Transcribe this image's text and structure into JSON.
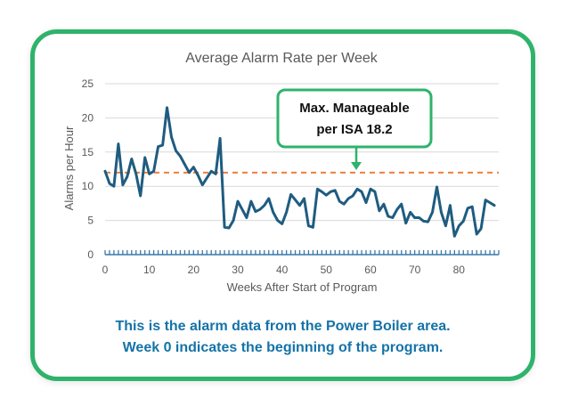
{
  "chart_data": {
    "type": "line",
    "title": "Average Alarm Rate per Week",
    "xlabel": "Weeks After Start of Program",
    "ylabel": "Alarms per Hour",
    "xlim": [
      0,
      89
    ],
    "ylim": [
      0,
      25
    ],
    "xticks": [
      0,
      10,
      20,
      30,
      40,
      50,
      60,
      70,
      80
    ],
    "yticks": [
      0,
      5,
      10,
      15,
      20,
      25
    ],
    "grid": "horizontal",
    "threshold": {
      "value": 12,
      "color": "#f07f3c",
      "style": "dashed"
    },
    "series": [
      {
        "color": "#1f5c80",
        "x": [
          0,
          1,
          2,
          3,
          4,
          5,
          6,
          7,
          8,
          9,
          10,
          11,
          12,
          13,
          14,
          15,
          16,
          17,
          18,
          19,
          20,
          21,
          22,
          23,
          24,
          25,
          26,
          27,
          28,
          29,
          30,
          31,
          32,
          33,
          34,
          35,
          36,
          37,
          38,
          39,
          40,
          41,
          42,
          43,
          44,
          45,
          46,
          47,
          48,
          49,
          50,
          51,
          52,
          53,
          54,
          55,
          56,
          57,
          58,
          59,
          60,
          61,
          62,
          63,
          64,
          65,
          66,
          67,
          68,
          69,
          70,
          71,
          72,
          73,
          74,
          75,
          76,
          77,
          78,
          79,
          80,
          81,
          82,
          83,
          84,
          85,
          86,
          87,
          88
        ],
        "values": [
          12.2,
          10.4,
          10.0,
          16.2,
          10.2,
          11.4,
          14.0,
          11.8,
          8.6,
          14.2,
          11.8,
          12.2,
          15.8,
          16.0,
          21.5,
          17.2,
          15.2,
          14.4,
          13.2,
          12.0,
          12.8,
          11.6,
          10.2,
          11.2,
          12.2,
          11.8,
          17.0,
          4.0,
          3.9,
          5.0,
          7.8,
          6.6,
          5.4,
          7.8,
          6.3,
          6.6,
          7.2,
          8.2,
          6.2,
          5.0,
          4.5,
          6.2,
          8.8,
          8.0,
          7.2,
          8.2,
          4.2,
          4.0,
          9.6,
          9.2,
          8.7,
          9.2,
          9.4,
          7.8,
          7.4,
          8.2,
          8.6,
          9.6,
          9.2,
          7.6,
          9.6,
          9.2,
          6.4,
          7.4,
          5.6,
          5.4,
          6.6,
          7.4,
          4.6,
          6.2,
          5.4,
          5.4,
          4.9,
          4.8,
          6.2,
          9.9,
          6.2,
          4.2,
          7.2,
          2.7,
          4.2,
          4.9,
          6.8,
          7.0,
          3.0,
          3.8,
          8.0,
          7.6,
          7.2
        ]
      }
    ]
  },
  "callout": {
    "lines": [
      "Max. Manageable",
      "per ISA 18.2"
    ],
    "border_color": "#2eb36b"
  },
  "caption": {
    "line1": "This is the alarm data from the Power Boiler area.",
    "line2": "Week 0 indicates the beginning of the program."
  }
}
